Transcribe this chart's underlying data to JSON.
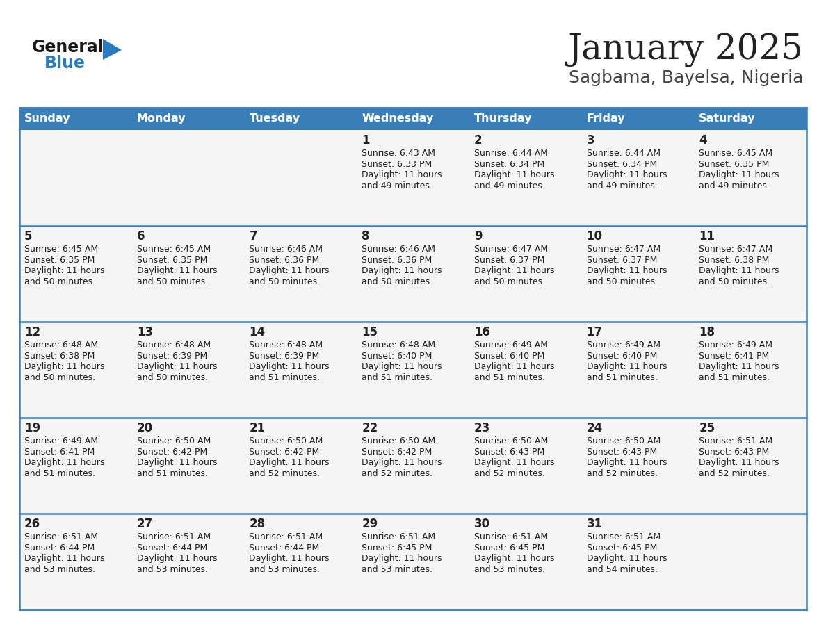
{
  "title": "January 2025",
  "subtitle": "Sagbama, Bayelsa, Nigeria",
  "days_of_week": [
    "Sunday",
    "Monday",
    "Tuesday",
    "Wednesday",
    "Thursday",
    "Friday",
    "Saturday"
  ],
  "header_bg": "#3a7eb8",
  "header_text": "#ffffff",
  "cell_bg": "#f5f5f5",
  "border_color": "#3a7eb8",
  "row_border_color": "#3a7eb8",
  "text_color": "#222222",
  "title_color": "#222222",
  "subtitle_color": "#444444",
  "logo_general_color": "#1a1a1a",
  "logo_blue_color": "#2a7abf",
  "calendar": [
    [
      {
        "day": null,
        "sunrise": null,
        "sunset": null,
        "daylight": null
      },
      {
        "day": null,
        "sunrise": null,
        "sunset": null,
        "daylight": null
      },
      {
        "day": null,
        "sunrise": null,
        "sunset": null,
        "daylight": null
      },
      {
        "day": 1,
        "sunrise": "6:43 AM",
        "sunset": "6:33 PM",
        "daylight": "11 hours and 49 minutes."
      },
      {
        "day": 2,
        "sunrise": "6:44 AM",
        "sunset": "6:34 PM",
        "daylight": "11 hours and 49 minutes."
      },
      {
        "day": 3,
        "sunrise": "6:44 AM",
        "sunset": "6:34 PM",
        "daylight": "11 hours and 49 minutes."
      },
      {
        "day": 4,
        "sunrise": "6:45 AM",
        "sunset": "6:35 PM",
        "daylight": "11 hours and 49 minutes."
      }
    ],
    [
      {
        "day": 5,
        "sunrise": "6:45 AM",
        "sunset": "6:35 PM",
        "daylight": "11 hours and 50 minutes."
      },
      {
        "day": 6,
        "sunrise": "6:45 AM",
        "sunset": "6:35 PM",
        "daylight": "11 hours and 50 minutes."
      },
      {
        "day": 7,
        "sunrise": "6:46 AM",
        "sunset": "6:36 PM",
        "daylight": "11 hours and 50 minutes."
      },
      {
        "day": 8,
        "sunrise": "6:46 AM",
        "sunset": "6:36 PM",
        "daylight": "11 hours and 50 minutes."
      },
      {
        "day": 9,
        "sunrise": "6:47 AM",
        "sunset": "6:37 PM",
        "daylight": "11 hours and 50 minutes."
      },
      {
        "day": 10,
        "sunrise": "6:47 AM",
        "sunset": "6:37 PM",
        "daylight": "11 hours and 50 minutes."
      },
      {
        "day": 11,
        "sunrise": "6:47 AM",
        "sunset": "6:38 PM",
        "daylight": "11 hours and 50 minutes."
      }
    ],
    [
      {
        "day": 12,
        "sunrise": "6:48 AM",
        "sunset": "6:38 PM",
        "daylight": "11 hours and 50 minutes."
      },
      {
        "day": 13,
        "sunrise": "6:48 AM",
        "sunset": "6:39 PM",
        "daylight": "11 hours and 50 minutes."
      },
      {
        "day": 14,
        "sunrise": "6:48 AM",
        "sunset": "6:39 PM",
        "daylight": "11 hours and 51 minutes."
      },
      {
        "day": 15,
        "sunrise": "6:48 AM",
        "sunset": "6:40 PM",
        "daylight": "11 hours and 51 minutes."
      },
      {
        "day": 16,
        "sunrise": "6:49 AM",
        "sunset": "6:40 PM",
        "daylight": "11 hours and 51 minutes."
      },
      {
        "day": 17,
        "sunrise": "6:49 AM",
        "sunset": "6:40 PM",
        "daylight": "11 hours and 51 minutes."
      },
      {
        "day": 18,
        "sunrise": "6:49 AM",
        "sunset": "6:41 PM",
        "daylight": "11 hours and 51 minutes."
      }
    ],
    [
      {
        "day": 19,
        "sunrise": "6:49 AM",
        "sunset": "6:41 PM",
        "daylight": "11 hours and 51 minutes."
      },
      {
        "day": 20,
        "sunrise": "6:50 AM",
        "sunset": "6:42 PM",
        "daylight": "11 hours and 51 minutes."
      },
      {
        "day": 21,
        "sunrise": "6:50 AM",
        "sunset": "6:42 PM",
        "daylight": "11 hours and 52 minutes."
      },
      {
        "day": 22,
        "sunrise": "6:50 AM",
        "sunset": "6:42 PM",
        "daylight": "11 hours and 52 minutes."
      },
      {
        "day": 23,
        "sunrise": "6:50 AM",
        "sunset": "6:43 PM",
        "daylight": "11 hours and 52 minutes."
      },
      {
        "day": 24,
        "sunrise": "6:50 AM",
        "sunset": "6:43 PM",
        "daylight": "11 hours and 52 minutes."
      },
      {
        "day": 25,
        "sunrise": "6:51 AM",
        "sunset": "6:43 PM",
        "daylight": "11 hours and 52 minutes."
      }
    ],
    [
      {
        "day": 26,
        "sunrise": "6:51 AM",
        "sunset": "6:44 PM",
        "daylight": "11 hours and 53 minutes."
      },
      {
        "day": 27,
        "sunrise": "6:51 AM",
        "sunset": "6:44 PM",
        "daylight": "11 hours and 53 minutes."
      },
      {
        "day": 28,
        "sunrise": "6:51 AM",
        "sunset": "6:44 PM",
        "daylight": "11 hours and 53 minutes."
      },
      {
        "day": 29,
        "sunrise": "6:51 AM",
        "sunset": "6:45 PM",
        "daylight": "11 hours and 53 minutes."
      },
      {
        "day": 30,
        "sunrise": "6:51 AM",
        "sunset": "6:45 PM",
        "daylight": "11 hours and 53 minutes."
      },
      {
        "day": 31,
        "sunrise": "6:51 AM",
        "sunset": "6:45 PM",
        "daylight": "11 hours and 54 minutes."
      },
      {
        "day": null,
        "sunrise": null,
        "sunset": null,
        "daylight": null
      }
    ]
  ]
}
